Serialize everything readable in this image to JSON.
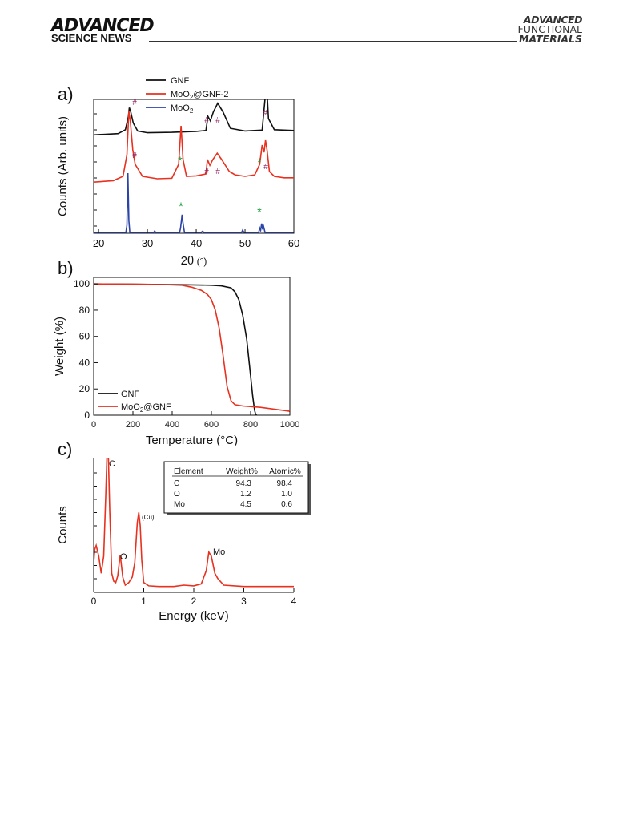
{
  "header": {
    "left_line1": "ADVANCED",
    "left_line2": "SCIENCE NEWS",
    "right_line1": "ADVANCED",
    "right_line2": "FUNCTIONAL",
    "right_line3": "MATERIALS"
  },
  "colors": {
    "black": "#111111",
    "red": "#e8311f",
    "blue": "#2c44a8",
    "green": "#1a9e3a",
    "purple": "#8a1f5c"
  },
  "chart_data": [
    {
      "panel": "a)",
      "type": "line",
      "xlabel_main": "2θ",
      "xlabel_unit": " (°)",
      "ylabel": "Counts (Arb. units)",
      "xlim": [
        19,
        60
      ],
      "xticks": [
        20,
        30,
        40,
        50,
        60
      ],
      "legend": [
        {
          "base": "GNF",
          "sub": "",
          "tail": ""
        },
        {
          "base": "MoO",
          "sub": "2",
          "tail": "@GNF-2"
        },
        {
          "base": "MoO",
          "sub": "2",
          "tail": ""
        }
      ],
      "series": [
        {
          "color": "#111111",
          "x": [
            19,
            24,
            25.5,
            26.1,
            26.3,
            26.6,
            27.1,
            28,
            30,
            35,
            40,
            42,
            42.4,
            42.9,
            43.5,
            44.4,
            45.5,
            47,
            50,
            53.5,
            54.1,
            54.4,
            54.8,
            56,
            60
          ],
          "y": [
            0.3,
            0.6,
            1.5,
            4.5,
            6.5,
            5.5,
            3,
            1.2,
            0.8,
            0.9,
            1.1,
            1.3,
            4.5,
            3.5,
            5.5,
            7.5,
            5.5,
            1.8,
            1.2,
            1.4,
            8.5,
            12,
            4,
            1.5,
            1.3
          ]
        },
        {
          "color": "#e8311f",
          "x": [
            19,
            23,
            25,
            25.8,
            26.2,
            26.5,
            27,
            27.5,
            29,
            32,
            35,
            36.4,
            36.9,
            37.3,
            38,
            40,
            42,
            42.3,
            42.8,
            43.4,
            44.3,
            45.2,
            46.8,
            48,
            50,
            52,
            53,
            53.5,
            53.9,
            54.2,
            54.5,
            55,
            56,
            58,
            60
          ],
          "y": [
            0.3,
            0.6,
            1.5,
            6,
            15,
            13,
            7,
            4,
            1.5,
            1,
            1.1,
            4,
            12,
            5,
            1.5,
            1.6,
            2,
            5,
            3.8,
            5,
            6.3,
            5,
            2.5,
            1.8,
            1.5,
            1.8,
            4,
            8,
            6.5,
            9,
            7,
            2.5,
            1.5,
            1.2,
            1.2
          ]
        },
        {
          "color": "#2c44a8",
          "x": [
            19,
            25.6,
            25.8,
            26,
            26.2,
            26.4,
            28,
            31.3,
            31.5,
            31.7,
            36.6,
            36.8,
            37,
            37.1,
            37.3,
            37.6,
            41,
            41.3,
            41.6,
            49.3,
            49.5,
            49.8,
            52.8,
            53,
            53.2,
            53.4,
            53.6,
            53.8,
            54.1,
            55,
            60
          ],
          "y": [
            0,
            0,
            5,
            40,
            8,
            0,
            0,
            0,
            1,
            0,
            0,
            3,
            9,
            12,
            6,
            0,
            0,
            0.8,
            0,
            0,
            1.5,
            0,
            0,
            3,
            1.5,
            6,
            2,
            4,
            0,
            0,
            0
          ]
        }
      ],
      "annotations": [
        {
          "text": "#",
          "near": "~27.8 (GNF)",
          "color": "#8a1f5c"
        },
        {
          "text": "#",
          "near": "~42.5 (GNF)",
          "color": "#8a1f5c"
        },
        {
          "text": "#",
          "near": "~43.7 (GNF)",
          "color": "#8a1f5c"
        },
        {
          "text": "#",
          "near": "~54.4 (GNF)",
          "color": "#8a1f5c"
        },
        {
          "text": "#",
          "near": "~27.5 (MoO2@GNF-2)",
          "color": "#8a1f5c"
        },
        {
          "text": "*",
          "near": "~37.0 (MoO2@GNF-2)",
          "color": "#1a9e3a"
        },
        {
          "text": "#",
          "near": "~42.3 (MoO2@GNF-2)",
          "color": "#8a1f5c"
        },
        {
          "text": "#",
          "near": "~43.8 (MoO2@GNF-2)",
          "color": "#8a1f5c"
        },
        {
          "text": "*",
          "near": "~53.4 (MoO2@GNF-2)",
          "color": "#1a9e3a"
        },
        {
          "text": "#",
          "near": "~54.4 (MoO2@GNF-2)",
          "color": "#8a1f5c"
        },
        {
          "text": "*",
          "near": "~37.1 (MoO2)",
          "color": "#1a9e3a"
        },
        {
          "text": "*",
          "near": "~53.4 (MoO2)",
          "color": "#1a9e3a"
        }
      ]
    },
    {
      "panel": "b)",
      "type": "line",
      "xlabel": "Temperature (°C)",
      "ylabel": "Weight (%)",
      "xlim": [
        0,
        1000
      ],
      "ylim": [
        0,
        105
      ],
      "xticks": [
        0,
        200,
        400,
        600,
        800,
        1000
      ],
      "yticks": [
        0,
        20,
        40,
        60,
        80,
        100
      ],
      "legend": [
        {
          "base": "GNF",
          "sub": "",
          "tail": ""
        },
        {
          "base": "MoO",
          "sub": "2",
          "tail": "@GNF"
        }
      ],
      "series": [
        {
          "color": "#111111",
          "x": [
            0,
            200,
            400,
            600,
            650,
            700,
            720,
            740,
            760,
            780,
            800,
            810,
            820,
            825,
            830
          ],
          "y": [
            100,
            99.8,
            99.5,
            99,
            98.5,
            97,
            94,
            88,
            76,
            58,
            30,
            15,
            4,
            1,
            0
          ]
        },
        {
          "color": "#e8311f",
          "x": [
            0,
            200,
            350,
            450,
            500,
            550,
            580,
            600,
            620,
            640,
            660,
            680,
            700,
            720,
            760,
            850,
            1000
          ],
          "y": [
            100,
            99.8,
            99.5,
            99,
            97.5,
            95,
            92,
            88,
            80,
            66,
            45,
            22,
            11,
            8,
            7,
            6,
            3
          ]
        }
      ]
    },
    {
      "panel": "c)",
      "type": "line",
      "xlabel": "Energy (keV)",
      "ylabel": "Counts",
      "xlim": [
        0,
        4
      ],
      "ylim": [
        0,
        100
      ],
      "xticks": [
        0,
        1,
        2,
        3,
        4
      ],
      "series": [
        {
          "color": "#e8311f",
          "x": [
            0,
            0.02,
            0.05,
            0.1,
            0.15,
            0.2,
            0.24,
            0.28,
            0.32,
            0.36,
            0.4,
            0.44,
            0.48,
            0.53,
            0.58,
            0.63,
            0.7,
            0.77,
            0.82,
            0.87,
            0.9,
            0.93,
            0.96,
            1.0,
            1.1,
            1.3,
            1.6,
            1.8,
            2.0,
            2.15,
            2.25,
            2.3,
            2.35,
            2.42,
            2.48,
            2.6,
            3.0,
            4.0
          ],
          "y": [
            20,
            30,
            33,
            25,
            12,
            25,
            70,
            120,
            60,
            12,
            6,
            5,
            10,
            26,
            9,
            3,
            5,
            9,
            20,
            50,
            58,
            48,
            22,
            5,
            2.5,
            2,
            2,
            3,
            2.5,
            4,
            14,
            28,
            25,
            12,
            8,
            3,
            2,
            2
          ]
        }
      ],
      "peak_labels": [
        {
          "text": "C",
          "at": 0.28
        },
        {
          "text": "O",
          "at": 0.53
        },
        {
          "text": "(Cu)",
          "at": 0.93
        },
        {
          "text": "Mo",
          "at": 2.3
        }
      ],
      "table": {
        "columns": [
          "Element",
          "Weight%",
          "Atomic%"
        ],
        "rows": [
          [
            "C",
            "94.3",
            "98.4"
          ],
          [
            "O",
            "1.2",
            "1.0"
          ],
          [
            "Mo",
            "4.5",
            "0.6"
          ]
        ]
      }
    }
  ]
}
